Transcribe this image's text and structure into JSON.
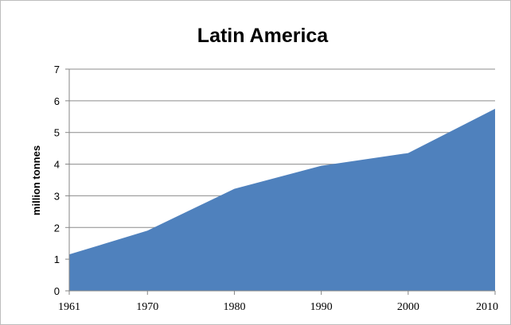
{
  "chart_data": {
    "type": "area",
    "title": "Latin America",
    "xlabel": "",
    "ylabel": "million tonnes",
    "x": [
      1961,
      1970,
      1980,
      1990,
      2000,
      2010
    ],
    "x_ticks": [
      "1961",
      "1970",
      "1980",
      "1990",
      "2000",
      "2010"
    ],
    "y_ticks": [
      "0",
      "1",
      "2",
      "3",
      "4",
      "5",
      "6",
      "7"
    ],
    "xlim": [
      1961,
      2010
    ],
    "ylim": [
      0,
      7
    ],
    "grid": true,
    "legend": "none",
    "series": [
      {
        "values": [
          1.15,
          1.9,
          3.22,
          3.95,
          4.35,
          5.75
        ],
        "color": "#4f81bd"
      }
    ]
  }
}
